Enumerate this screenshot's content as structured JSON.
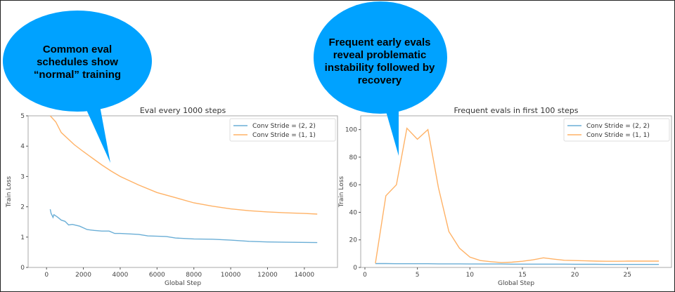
{
  "callouts": [
    {
      "text_lines": [
        "Common eval",
        "schedules show",
        "“normal” training"
      ],
      "color": "#00a2ff"
    },
    {
      "text_lines": [
        "Frequent early evals",
        "reveal problematic",
        "instability followed by",
        "recovery"
      ],
      "color": "#00a2ff"
    }
  ],
  "chart_data": [
    {
      "type": "line",
      "title": "Eval every 1000 steps",
      "xlabel": "Global Step",
      "ylabel": "Train Loss",
      "xlim": [
        -1000,
        15800
      ],
      "ylim": [
        0,
        5
      ],
      "xticks": [
        0,
        2000,
        4000,
        6000,
        8000,
        10000,
        12000,
        14000
      ],
      "yticks": [
        0,
        1,
        2,
        3,
        4,
        5
      ],
      "grid": false,
      "legend": "top-right",
      "series": [
        {
          "name": "Conv Stride =  (2, 2)",
          "color": "#6aaed6",
          "x": [
            200,
            250,
            300,
            350,
            400,
            600,
            800,
            1000,
            1200,
            1400,
            1800,
            2200,
            2600,
            3000,
            3400,
            3700,
            4000,
            5000,
            5500,
            6500,
            7000,
            8000,
            9000,
            10000,
            11000,
            12000,
            13000,
            14700
          ],
          "y": [
            1.92,
            1.78,
            1.72,
            1.65,
            1.74,
            1.66,
            1.56,
            1.52,
            1.4,
            1.42,
            1.36,
            1.25,
            1.22,
            1.2,
            1.2,
            1.12,
            1.12,
            1.09,
            1.04,
            1.02,
            0.97,
            0.94,
            0.93,
            0.9,
            0.86,
            0.84,
            0.83,
            0.82
          ]
        },
        {
          "name": "Conv Stride =  (1, 1)",
          "color": "#ffb266",
          "x": [
            200,
            500,
            800,
            1500,
            2000,
            2500,
            3000,
            3500,
            4000,
            5000,
            6000,
            7000,
            8000,
            9000,
            10000,
            11000,
            12000,
            13000,
            14000,
            14700
          ],
          "y": [
            5.0,
            4.8,
            4.45,
            4.05,
            3.82,
            3.6,
            3.38,
            3.18,
            3.0,
            2.72,
            2.47,
            2.3,
            2.13,
            2.02,
            1.93,
            1.87,
            1.83,
            1.8,
            1.78,
            1.76
          ]
        }
      ]
    },
    {
      "type": "line",
      "title": "Frequent evals in first 100 steps",
      "xlabel": "Global Step",
      "ylabel": "Train Loss",
      "xlim": [
        -0.4,
        29.2
      ],
      "ylim": [
        0,
        110
      ],
      "xticks": [
        0,
        5,
        10,
        15,
        20,
        25
      ],
      "yticks": [
        0,
        20,
        40,
        60,
        80,
        100
      ],
      "grid": false,
      "legend": "top-right",
      "series": [
        {
          "name": "Conv Stride =  (2, 2)",
          "color": "#6aaed6",
          "x": [
            1,
            2,
            3,
            4,
            5,
            6,
            7,
            8,
            9,
            10,
            11,
            12,
            13,
            14,
            15,
            16,
            17,
            18,
            19,
            20,
            21,
            22,
            23,
            24,
            25,
            26,
            27,
            28
          ],
          "y": [
            2.8,
            2.8,
            2.7,
            2.7,
            2.7,
            2.7,
            2.6,
            2.6,
            2.6,
            2.5,
            2.5,
            2.5,
            2.5,
            2.4,
            2.4,
            2.4,
            2.4,
            2.4,
            2.4,
            2.3,
            2.3,
            2.3,
            2.2,
            2.2,
            2.2,
            2.2,
            2.2,
            2.2
          ]
        },
        {
          "name": "Conv Stride =  (1, 1)",
          "color": "#ffb266",
          "x": [
            1,
            2,
            3,
            4,
            5,
            6,
            7,
            8,
            9,
            10,
            11,
            12,
            13,
            14,
            15,
            16,
            17,
            18,
            19,
            20,
            21,
            22,
            23,
            24,
            25,
            26,
            27,
            28
          ],
          "y": [
            3,
            52,
            60,
            101,
            93,
            100,
            58,
            26,
            14,
            7.5,
            5,
            4.2,
            3.5,
            3.8,
            4.5,
            5.5,
            7,
            6,
            5.2,
            5,
            4.8,
            4.6,
            4.5,
            4.5,
            4.6,
            4.6,
            4.6,
            4.6
          ]
        }
      ]
    }
  ]
}
